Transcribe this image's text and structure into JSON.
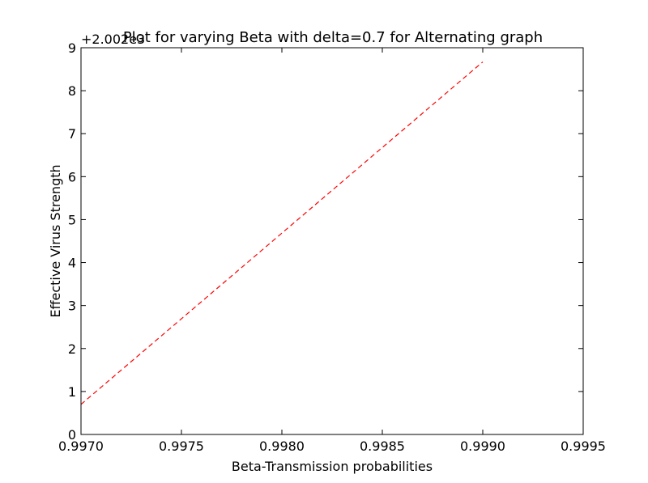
{
  "chart_data": {
    "type": "line",
    "title": "Plot for varying Beta with delta=0.7 for Alternating graph",
    "xlabel": "Beta-Transmission probabilities",
    "ylabel": "Effective Virus Strength",
    "offset_text": "+2.002e3",
    "xlim": [
      0.997,
      0.9995
    ],
    "ylim": [
      0,
      9
    ],
    "x_ticks": [
      "0.9970",
      "0.9975",
      "0.9980",
      "0.9985",
      "0.9990",
      "0.9995"
    ],
    "y_ticks": [
      "0",
      "1",
      "2",
      "3",
      "4",
      "5",
      "6",
      "7",
      "8",
      "9"
    ],
    "grid": false,
    "series": [
      {
        "color": "#ff0000",
        "line_style": "dashed",
        "x": [
          0.997,
          0.999
        ],
        "y": [
          0.7,
          8.67
        ]
      }
    ]
  }
}
